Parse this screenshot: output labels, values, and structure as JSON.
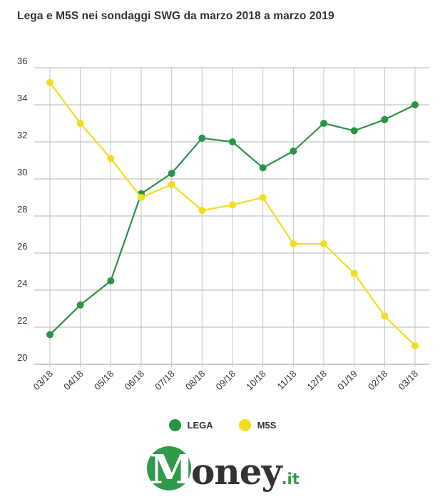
{
  "title": "Lega e M5S nei sondaggi SWG da marzo 2018 a marzo 2019",
  "chart_data": {
    "type": "line",
    "title": "Lega e M5S nei sondaggi SWG da marzo 2018 a marzo 2019",
    "xlabel": "",
    "ylabel": "",
    "categories": [
      "03/18",
      "04/18",
      "05/18",
      "06/18",
      "07/18",
      "08/18",
      "09/18",
      "10/18",
      "11/18",
      "12/18",
      "01/19",
      "02/18",
      "03/18"
    ],
    "ylim": [
      20,
      36
    ],
    "yticks": [
      20,
      22,
      24,
      26,
      28,
      30,
      32,
      34,
      36
    ],
    "grid": true,
    "legend_position": "bottom",
    "series": [
      {
        "name": "LEGA",
        "color": "#2a9445",
        "values": [
          21.6,
          23.2,
          24.5,
          29.2,
          30.3,
          32.2,
          32.0,
          30.6,
          31.5,
          33.0,
          32.6,
          33.2,
          34.0
        ]
      },
      {
        "name": "M5S",
        "color": "#f2dd1e",
        "values": [
          35.2,
          33.0,
          31.1,
          29.0,
          29.7,
          28.3,
          28.6,
          29.0,
          26.5,
          26.5,
          24.9,
          22.6,
          21.0
        ]
      }
    ]
  },
  "legend": {
    "items": [
      {
        "label": "LEGA",
        "color": "#2a9445"
      },
      {
        "label": "M5S",
        "color": "#f2dd1e"
      }
    ]
  },
  "logo": {
    "initial": "M",
    "rest": "oney",
    "suffix": ".it"
  }
}
